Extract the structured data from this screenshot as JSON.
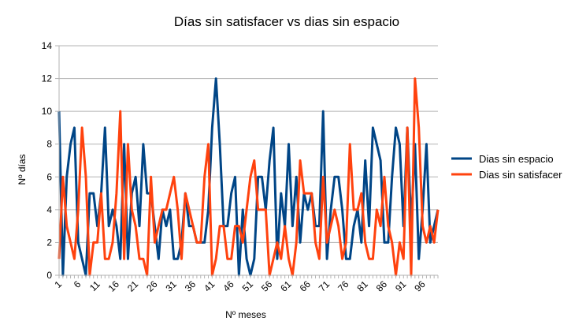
{
  "chart_data": {
    "type": "line",
    "title": "Días sin satisfacer vs dias sin espacio",
    "xlabel": "Nº meses",
    "ylabel": "Nº días",
    "ylim": [
      0,
      14
    ],
    "yticks": [
      0,
      2,
      4,
      6,
      8,
      10,
      12,
      14
    ],
    "grid": true,
    "legend_position": "right",
    "x": [
      1,
      2,
      3,
      4,
      5,
      6,
      7,
      8,
      9,
      10,
      11,
      12,
      13,
      14,
      15,
      16,
      17,
      18,
      19,
      20,
      21,
      22,
      23,
      24,
      25,
      26,
      27,
      28,
      29,
      30,
      31,
      32,
      33,
      34,
      35,
      36,
      37,
      38,
      39,
      40,
      41,
      42,
      43,
      44,
      45,
      46,
      47,
      48,
      49,
      50,
      51,
      52,
      53,
      54,
      55,
      56,
      57,
      58,
      59,
      60,
      61,
      62,
      63,
      64,
      65,
      66,
      67,
      68,
      69,
      70,
      71,
      72,
      73,
      74,
      75,
      76,
      77,
      78,
      79,
      80,
      81,
      82,
      83,
      84,
      85,
      86,
      87,
      88,
      89,
      90,
      91,
      92,
      93,
      94,
      95,
      96,
      97,
      98,
      99,
      100
    ],
    "xtick_labels": [
      "1",
      "6",
      "11",
      "16",
      "21",
      "26",
      "31",
      "36",
      "41",
      "46",
      "51",
      "56",
      "61",
      "66",
      "71",
      "76",
      "81",
      "86",
      "91",
      "96"
    ],
    "series": [
      {
        "name": "Dias sin espacio",
        "color": "#004586",
        "values": [
          10,
          0,
          6,
          8,
          9,
          2,
          1,
          0,
          5,
          5,
          3,
          5,
          9,
          3,
          4,
          3,
          1,
          8,
          1,
          5,
          6,
          3,
          8,
          5,
          5,
          3,
          1,
          4,
          3,
          4,
          1,
          1,
          2,
          5,
          3,
          3,
          2,
          2,
          2,
          4,
          9,
          12,
          8,
          3,
          3,
          5,
          6,
          0,
          4,
          1,
          0,
          1,
          6,
          6,
          4,
          7,
          9,
          1,
          5,
          3,
          8,
          3,
          6,
          2,
          5,
          4,
          5,
          3,
          3,
          10,
          1,
          4,
          6,
          6,
          4,
          1,
          1,
          3,
          4,
          2,
          7,
          3,
          9,
          8,
          7,
          2,
          2,
          6,
          9,
          8,
          3,
          9,
          3,
          8,
          1,
          4,
          8,
          2,
          3,
          4
        ]
      },
      {
        "name": "Dias sin satisfacer",
        "color": "#ff420e",
        "values": [
          1,
          6,
          3,
          2,
          1,
          4,
          9,
          6,
          0,
          2,
          2,
          5,
          1,
          1,
          2,
          5,
          10,
          1,
          8,
          4,
          3,
          1,
          1,
          0,
          6,
          2,
          3,
          4,
          4,
          5,
          6,
          4,
          1,
          5,
          4,
          3,
          2,
          2,
          6,
          8,
          0,
          1,
          3,
          3,
          1,
          1,
          3,
          3,
          2,
          4,
          6,
          7,
          4,
          4,
          4,
          0,
          1,
          2,
          1,
          3,
          1,
          0,
          2,
          7,
          5,
          5,
          5,
          2,
          1,
          6,
          2,
          3,
          4,
          3,
          1,
          2,
          8,
          4,
          4,
          5,
          2,
          1,
          1,
          4,
          3,
          6,
          3,
          2,
          0,
          2,
          1,
          9,
          0,
          12,
          9,
          3,
          2,
          3,
          2,
          4
        ]
      }
    ]
  }
}
